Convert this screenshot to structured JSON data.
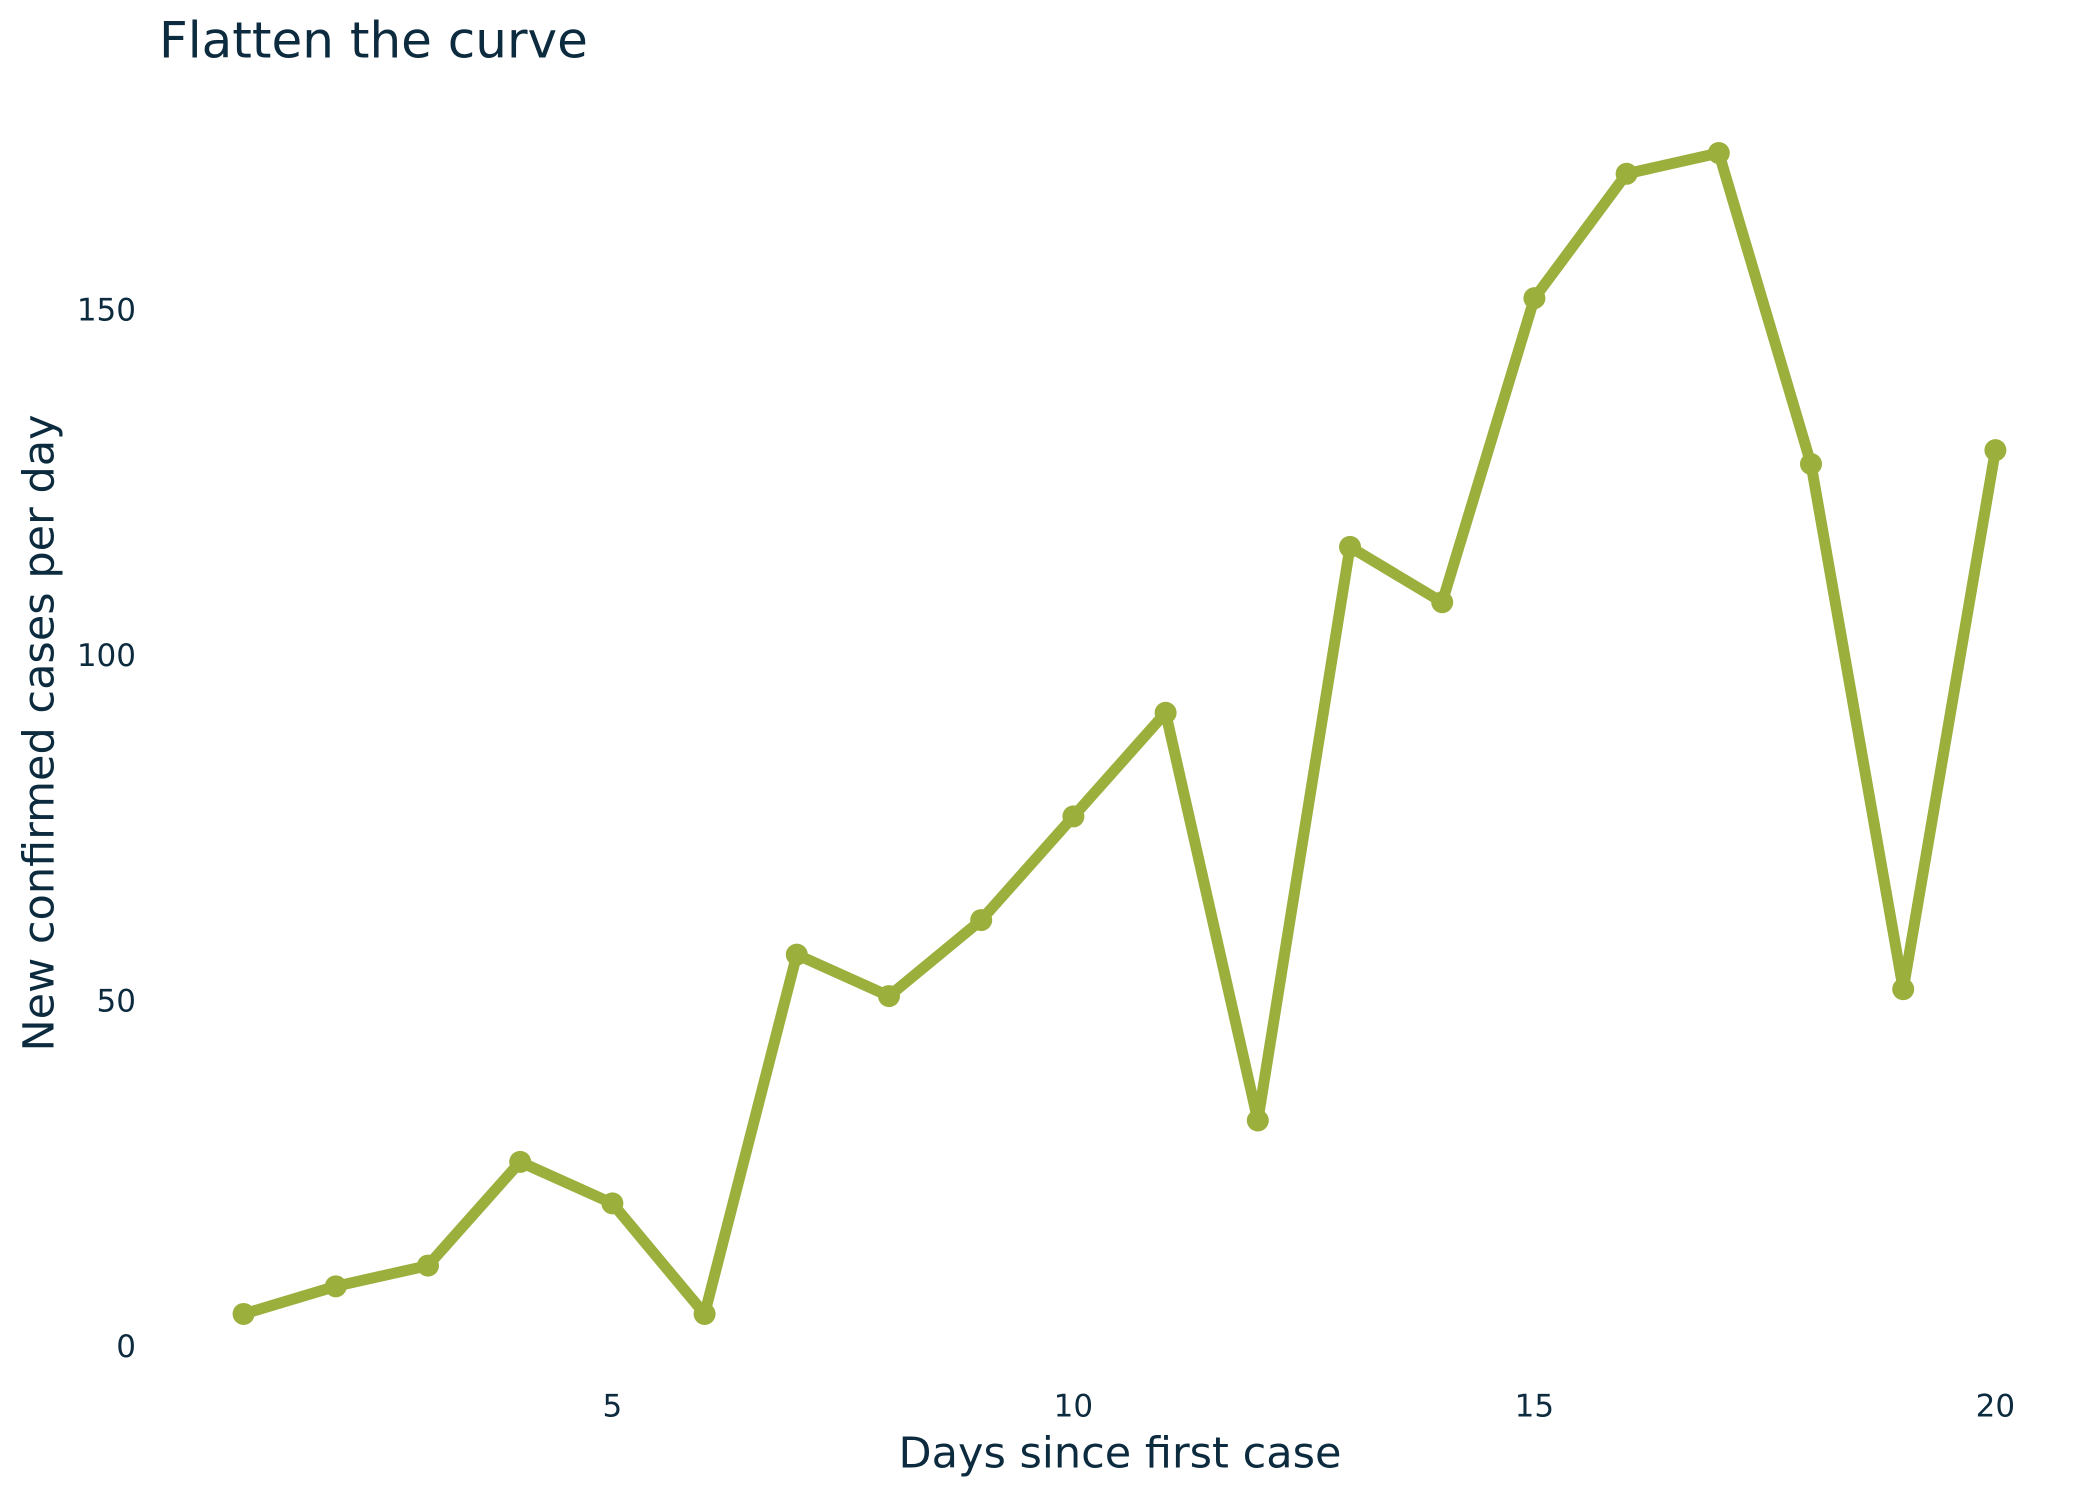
{
  "chart_data": {
    "type": "line",
    "title": "Flatten the curve",
    "x_label": "Days since first case",
    "y_label": "New confirmed cases per day",
    "x": [
      1,
      2,
      3,
      4,
      5,
      6,
      7,
      8,
      9,
      10,
      11,
      12,
      13,
      14,
      15,
      16,
      17,
      18,
      19,
      20
    ],
    "series": [
      {
        "color": "#9aaf3c",
        "values": [
          5,
          9,
          12,
          27,
          21,
          5,
          57,
          51,
          62,
          77,
          92,
          33,
          116,
          108,
          152,
          170,
          173,
          128,
          52,
          130
        ]
      }
    ],
    "xlim": [
      0.05,
      20.95
    ],
    "ylim": [
      -3.4,
      181.4
    ],
    "xticks": [
      5,
      10,
      15,
      20
    ],
    "yticks": [
      0,
      50,
      100,
      150
    ],
    "grid": false
  }
}
